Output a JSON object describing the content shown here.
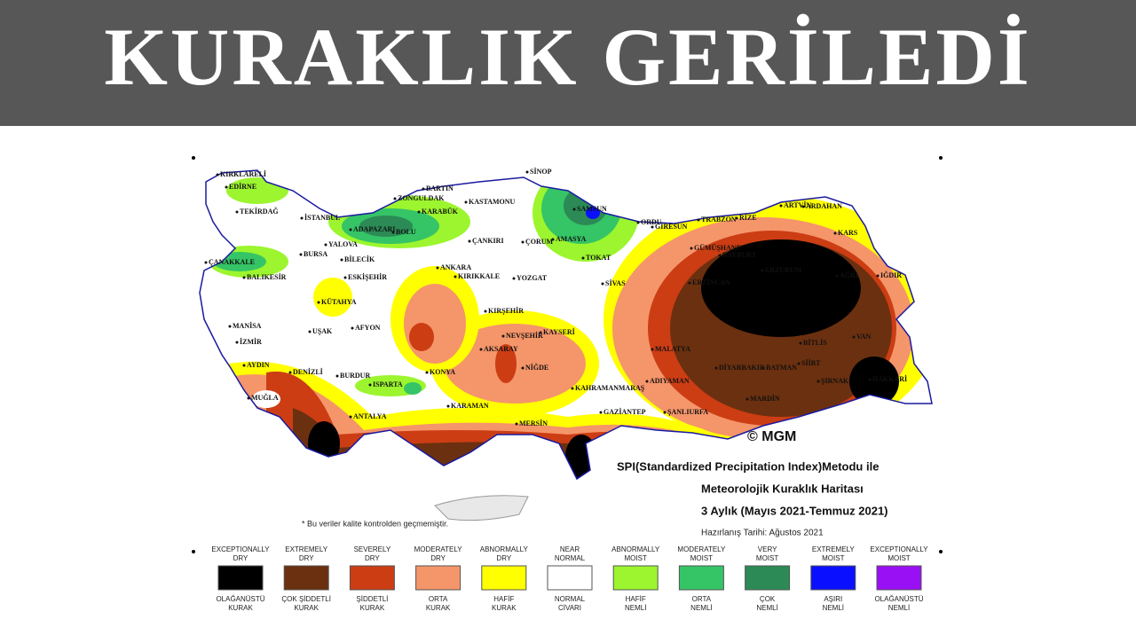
{
  "header": {
    "title": "KURAKLIK GERİLEDİ"
  },
  "map": {
    "cities": [
      "KIRKLARELİ",
      "EDİRNE",
      "TEKİRDAĞ",
      "İSTANBUL",
      "ZONGULDAK",
      "BARTIN",
      "KARABÜK",
      "KASTAMONU",
      "SİNOP",
      "SAMSUN",
      "ORDU",
      "GİRESUN",
      "TRABZON",
      "RİZE",
      "ARTVİN",
      "ARDAHAN",
      "KARS",
      "ADAPAZARI",
      "BOLU",
      "YALOVA",
      "BURSA",
      "BİLECİK",
      "ÇANAKKALE",
      "BALIKESİR",
      "ESKİŞEHİR",
      "ANKARA",
      "KIRIKKALE",
      "ÇANKIRI",
      "ÇORUM",
      "AMASYA",
      "TOKAT",
      "YOZGAT",
      "SİVAS",
      "GÜMÜŞHANE",
      "BAYBURT",
      "ERZİNCAN",
      "ERZURUM",
      "AĞRI",
      "IĞDIR",
      "KÜTAHYA",
      "MANİSA",
      "İZMİR",
      "UŞAK",
      "AFYON",
      "KIRŞEHİR",
      "NEVŞEHİR",
      "KAYSERİ",
      "AKSARAY",
      "MALATYA",
      "BİTLİS",
      "VAN",
      "AYDIN",
      "DENİZLİ",
      "BURDUR",
      "ISPARTA",
      "KONYA",
      "NİĞDE",
      "KAHRAMANMARAŞ",
      "ADIYAMAN",
      "DİYARBAKIR",
      "BATMAN",
      "SİİRT",
      "ŞIRNAK",
      "HAKKARİ",
      "MUĞLA",
      "ANTALYA",
      "KARAMAN",
      "MERSİN",
      "GAZİANTEP",
      "ŞANLIURFA",
      "MARDİN"
    ],
    "copyright": "© MGM",
    "note": "* Bu veriler kalite kontrolden geçmemiştir."
  },
  "title_block": {
    "lines": [
      "SPI(Standardized Precipitation Index)Metodu ile",
      "Meteorolojik Kuraklık Haritası",
      "3 Aylık (Mayıs 2021-Temmuz 2021)",
      "Hazırlanış Tarihi: Ağustos 2021"
    ]
  },
  "legend": {
    "items": [
      {
        "en": [
          "EXCEPTIONALLY",
          "DRY"
        ],
        "color": "#000000",
        "tr": [
          "OLAĞANÜSTÜ",
          "KURAK"
        ]
      },
      {
        "en": [
          "EXTREMELY",
          "DRY"
        ],
        "color": "#6b300f",
        "tr": [
          "ÇOK ŞİDDETLİ",
          "KURAK"
        ]
      },
      {
        "en": [
          "SEVERELY",
          "DRY"
        ],
        "color": "#cc3d14",
        "tr": [
          "ŞİDDETLİ",
          "KURAK"
        ]
      },
      {
        "en": [
          "MODERATELY",
          "DRY"
        ],
        "color": "#f5956a",
        "tr": [
          "ORTA",
          "KURAK"
        ]
      },
      {
        "en": [
          "ABNORMALLY",
          "DRY"
        ],
        "color": "#ffff00",
        "tr": [
          "HAFİF",
          "KURAK"
        ]
      },
      {
        "en": [
          "NEAR",
          "NORMAL"
        ],
        "color": "#ffffff",
        "tr": [
          "NORMAL",
          "CİVARI"
        ]
      },
      {
        "en": [
          "ABNORMALLY",
          "MOIST"
        ],
        "color": "#9cf52e",
        "tr": [
          "HAFİF",
          "NEMLİ"
        ]
      },
      {
        "en": [
          "MODERATELY",
          "MOIST"
        ],
        "color": "#35c466",
        "tr": [
          "ORTA",
          "NEMLİ"
        ]
      },
      {
        "en": [
          "VERY",
          "MOIST"
        ],
        "color": "#2b8a55",
        "tr": [
          "ÇOK",
          "NEMLİ"
        ]
      },
      {
        "en": [
          "EXTREMELY",
          "MOIST"
        ],
        "color": "#0a10ff",
        "tr": [
          "AŞIRI",
          "NEMLİ"
        ]
      },
      {
        "en": [
          "EXCEPTIONALLY",
          "MOIST"
        ],
        "color": "#9a10f5",
        "tr": [
          "OLAĞANÜSTÜ",
          "NEMLİ"
        ]
      }
    ]
  }
}
